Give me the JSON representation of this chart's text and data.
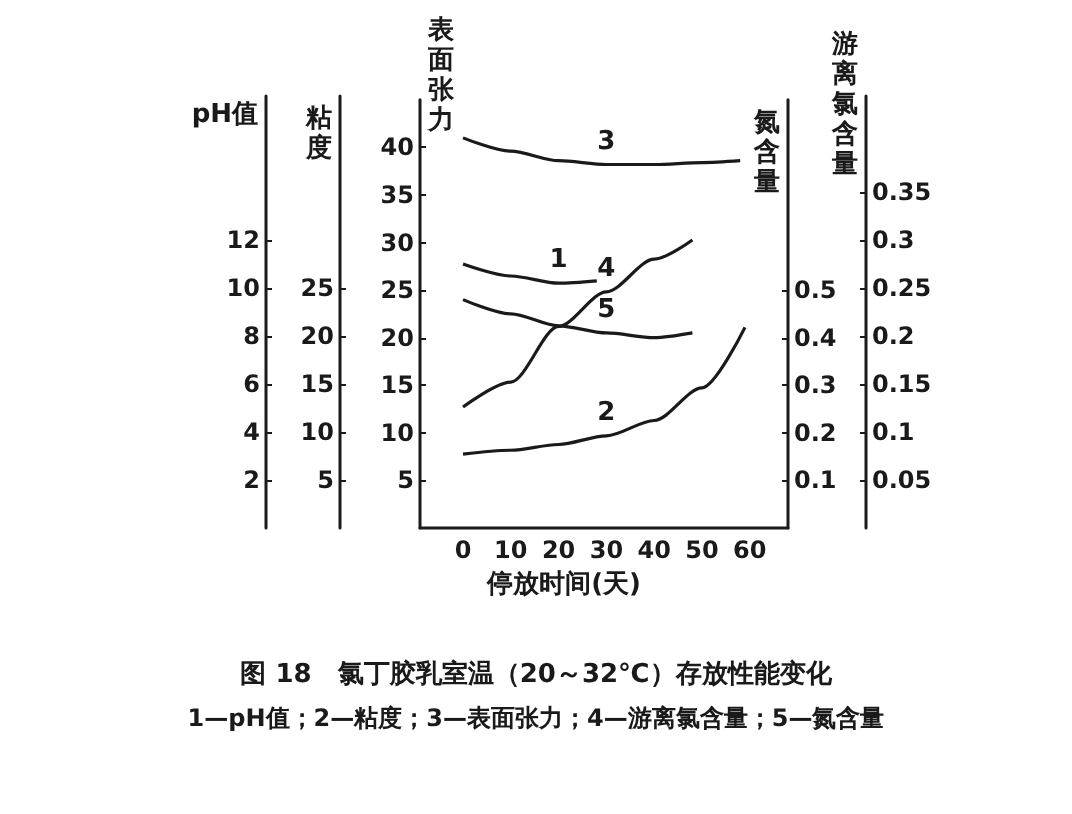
{
  "chart_data": [
    {
      "type": "line",
      "title": "图 18　氯丁胶乳室温（20～32℃）存放性能变化",
      "xlabel": "停放时间(天)",
      "ylabel": "表面张力",
      "y2label": "氮含量",
      "annotations": [
        "1—pH值；2—粘度；3—表面张力；4—游离氯含量；5—氮含量"
      ],
      "xlim": [
        -9,
        68
      ],
      "xticks": [
        0,
        10,
        20,
        30,
        40,
        50,
        60
      ],
      "ylim": [
        0,
        45
      ],
      "yticks": [
        5,
        10,
        15,
        20,
        25,
        30,
        35,
        40
      ],
      "y2lim": [
        0,
        0.9
      ],
      "y2ticks": [
        0.1,
        0.2,
        0.3,
        0.4,
        0.5
      ],
      "grid": false,
      "legend": false,
      "marker": "none",
      "line_style": "solid",
      "series": [
        {
          "name": "3",
          "color": "#1a1a1a",
          "axis": "y",
          "x": [
            0,
            10,
            20,
            30,
            40,
            50,
            58
          ],
          "values": [
            41,
            39.6,
            38.6,
            38.2,
            38.2,
            38.4,
            38.6
          ]
        },
        {
          "name": "5",
          "color": "#1a1a1a",
          "axis": "y2",
          "x": [
            0,
            10,
            20,
            30,
            40,
            48
          ],
          "values": [
            0.48,
            0.45,
            0.425,
            0.41,
            0.4,
            0.41
          ]
        }
      ]
    },
    {
      "type": "line",
      "ylabel": "粘度",
      "y2label": "游离氯含量",
      "y3label": "pH值",
      "y3lim": [
        0,
        18
      ],
      "y3ticks": [
        2,
        4,
        6,
        8,
        10,
        12
      ],
      "xlim": [
        -9,
        68
      ],
      "tick_labels": "y",
      "ylim": [
        0,
        45
      ],
      "yticks": [
        5,
        10,
        15,
        20,
        25
      ],
      "y2lim": [
        0,
        0.45
      ],
      "y2ticks": [
        0.05,
        0.1,
        0.15,
        0.2,
        0.25,
        0.3,
        0.35
      ],
      "grid": false,
      "legend": false,
      "marker": "none",
      "line_style": "solid",
      "series": [
        {
          "name": "2",
          "color": "#1a1a1a",
          "axis": "y",
          "x": [
            0,
            10,
            20,
            30,
            40,
            50,
            59
          ],
          "values": [
            7.7,
            8.1,
            8.7,
            9.6,
            11.2,
            14.6,
            20.9
          ]
        },
        {
          "name": "4",
          "color": "#1a1a1a",
          "axis": "y2",
          "x": [
            0,
            10,
            20,
            30,
            40,
            48
          ],
          "values": [
            0.126,
            0.152,
            0.21,
            0.246,
            0.28,
            0.3
          ]
        },
        {
          "name": "1",
          "color": "#1a1a1a",
          "axis": "y3",
          "x": [
            0,
            10,
            20,
            28
          ],
          "values": [
            11.0,
            10.5,
            10.2,
            10.3
          ]
        }
      ]
    }
  ]
}
